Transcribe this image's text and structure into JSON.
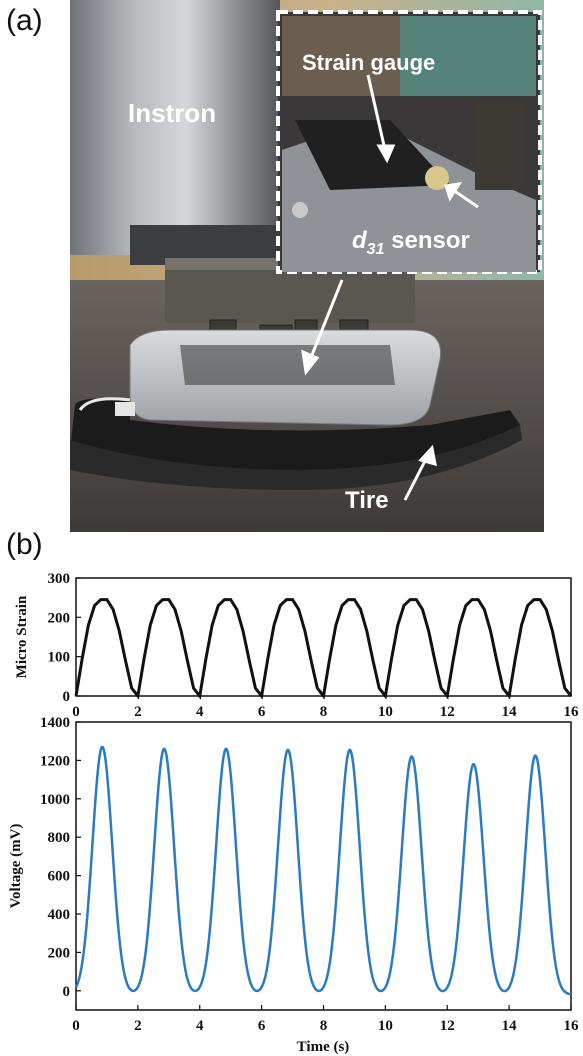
{
  "panels": {
    "a_label": "(a)",
    "b_label": "(b)"
  },
  "photo": {
    "instron_label": "Instron",
    "strain_gauge_label": "Strain gauge",
    "d31_label_main": "d",
    "d31_label_sub": "31",
    "d31_label_rest": " sensor",
    "tire_label": "Tire"
  },
  "colors": {
    "strain_line": "#111111",
    "voltage_line": "#2a7bbf",
    "label_text": "#ffffff",
    "inset_border": "#ffffff"
  },
  "chart_data": [
    {
      "type": "line",
      "title": "",
      "xlabel": "",
      "ylabel": "Micro Strain",
      "xlim": [
        0,
        16
      ],
      "ylim": [
        0,
        300
      ],
      "x_ticks": [
        "0",
        "2",
        "4",
        "6",
        "8",
        "10",
        "12",
        "14",
        "16"
      ],
      "y_ticks": [
        "0",
        "100",
        "200",
        "300"
      ],
      "grid": false,
      "series": [
        {
          "x": [
            0,
            0.2,
            0.4,
            0.6,
            0.8,
            1.0,
            1.2,
            1.4,
            1.6,
            1.8,
            2.0
          ],
          "y": [
            0,
            95,
            180,
            230,
            245,
            245,
            220,
            165,
            90,
            20,
            0
          ],
          "period": 2,
          "repeat_until": 16
        }
      ]
    },
    {
      "type": "line",
      "title": "",
      "xlabel": "Time (s)",
      "ylabel": "Voltage (mV)",
      "xlim": [
        0,
        16
      ],
      "ylim": [
        -100,
        1400
      ],
      "x_ticks": [
        "0",
        "2",
        "4",
        "6",
        "8",
        "10",
        "12",
        "14",
        "16"
      ],
      "y_ticks": [
        "0",
        "200",
        "400",
        "600",
        "800",
        "1000",
        "1200",
        "1400"
      ],
      "grid": false,
      "series": [
        {
          "peaks_x": [
            0.85,
            2.85,
            4.85,
            6.85,
            8.85,
            10.85,
            12.85,
            14.85
          ],
          "peaks_y": [
            1270,
            1260,
            1260,
            1255,
            1255,
            1220,
            1180,
            1225
          ],
          "baseline": -20
        }
      ]
    }
  ]
}
